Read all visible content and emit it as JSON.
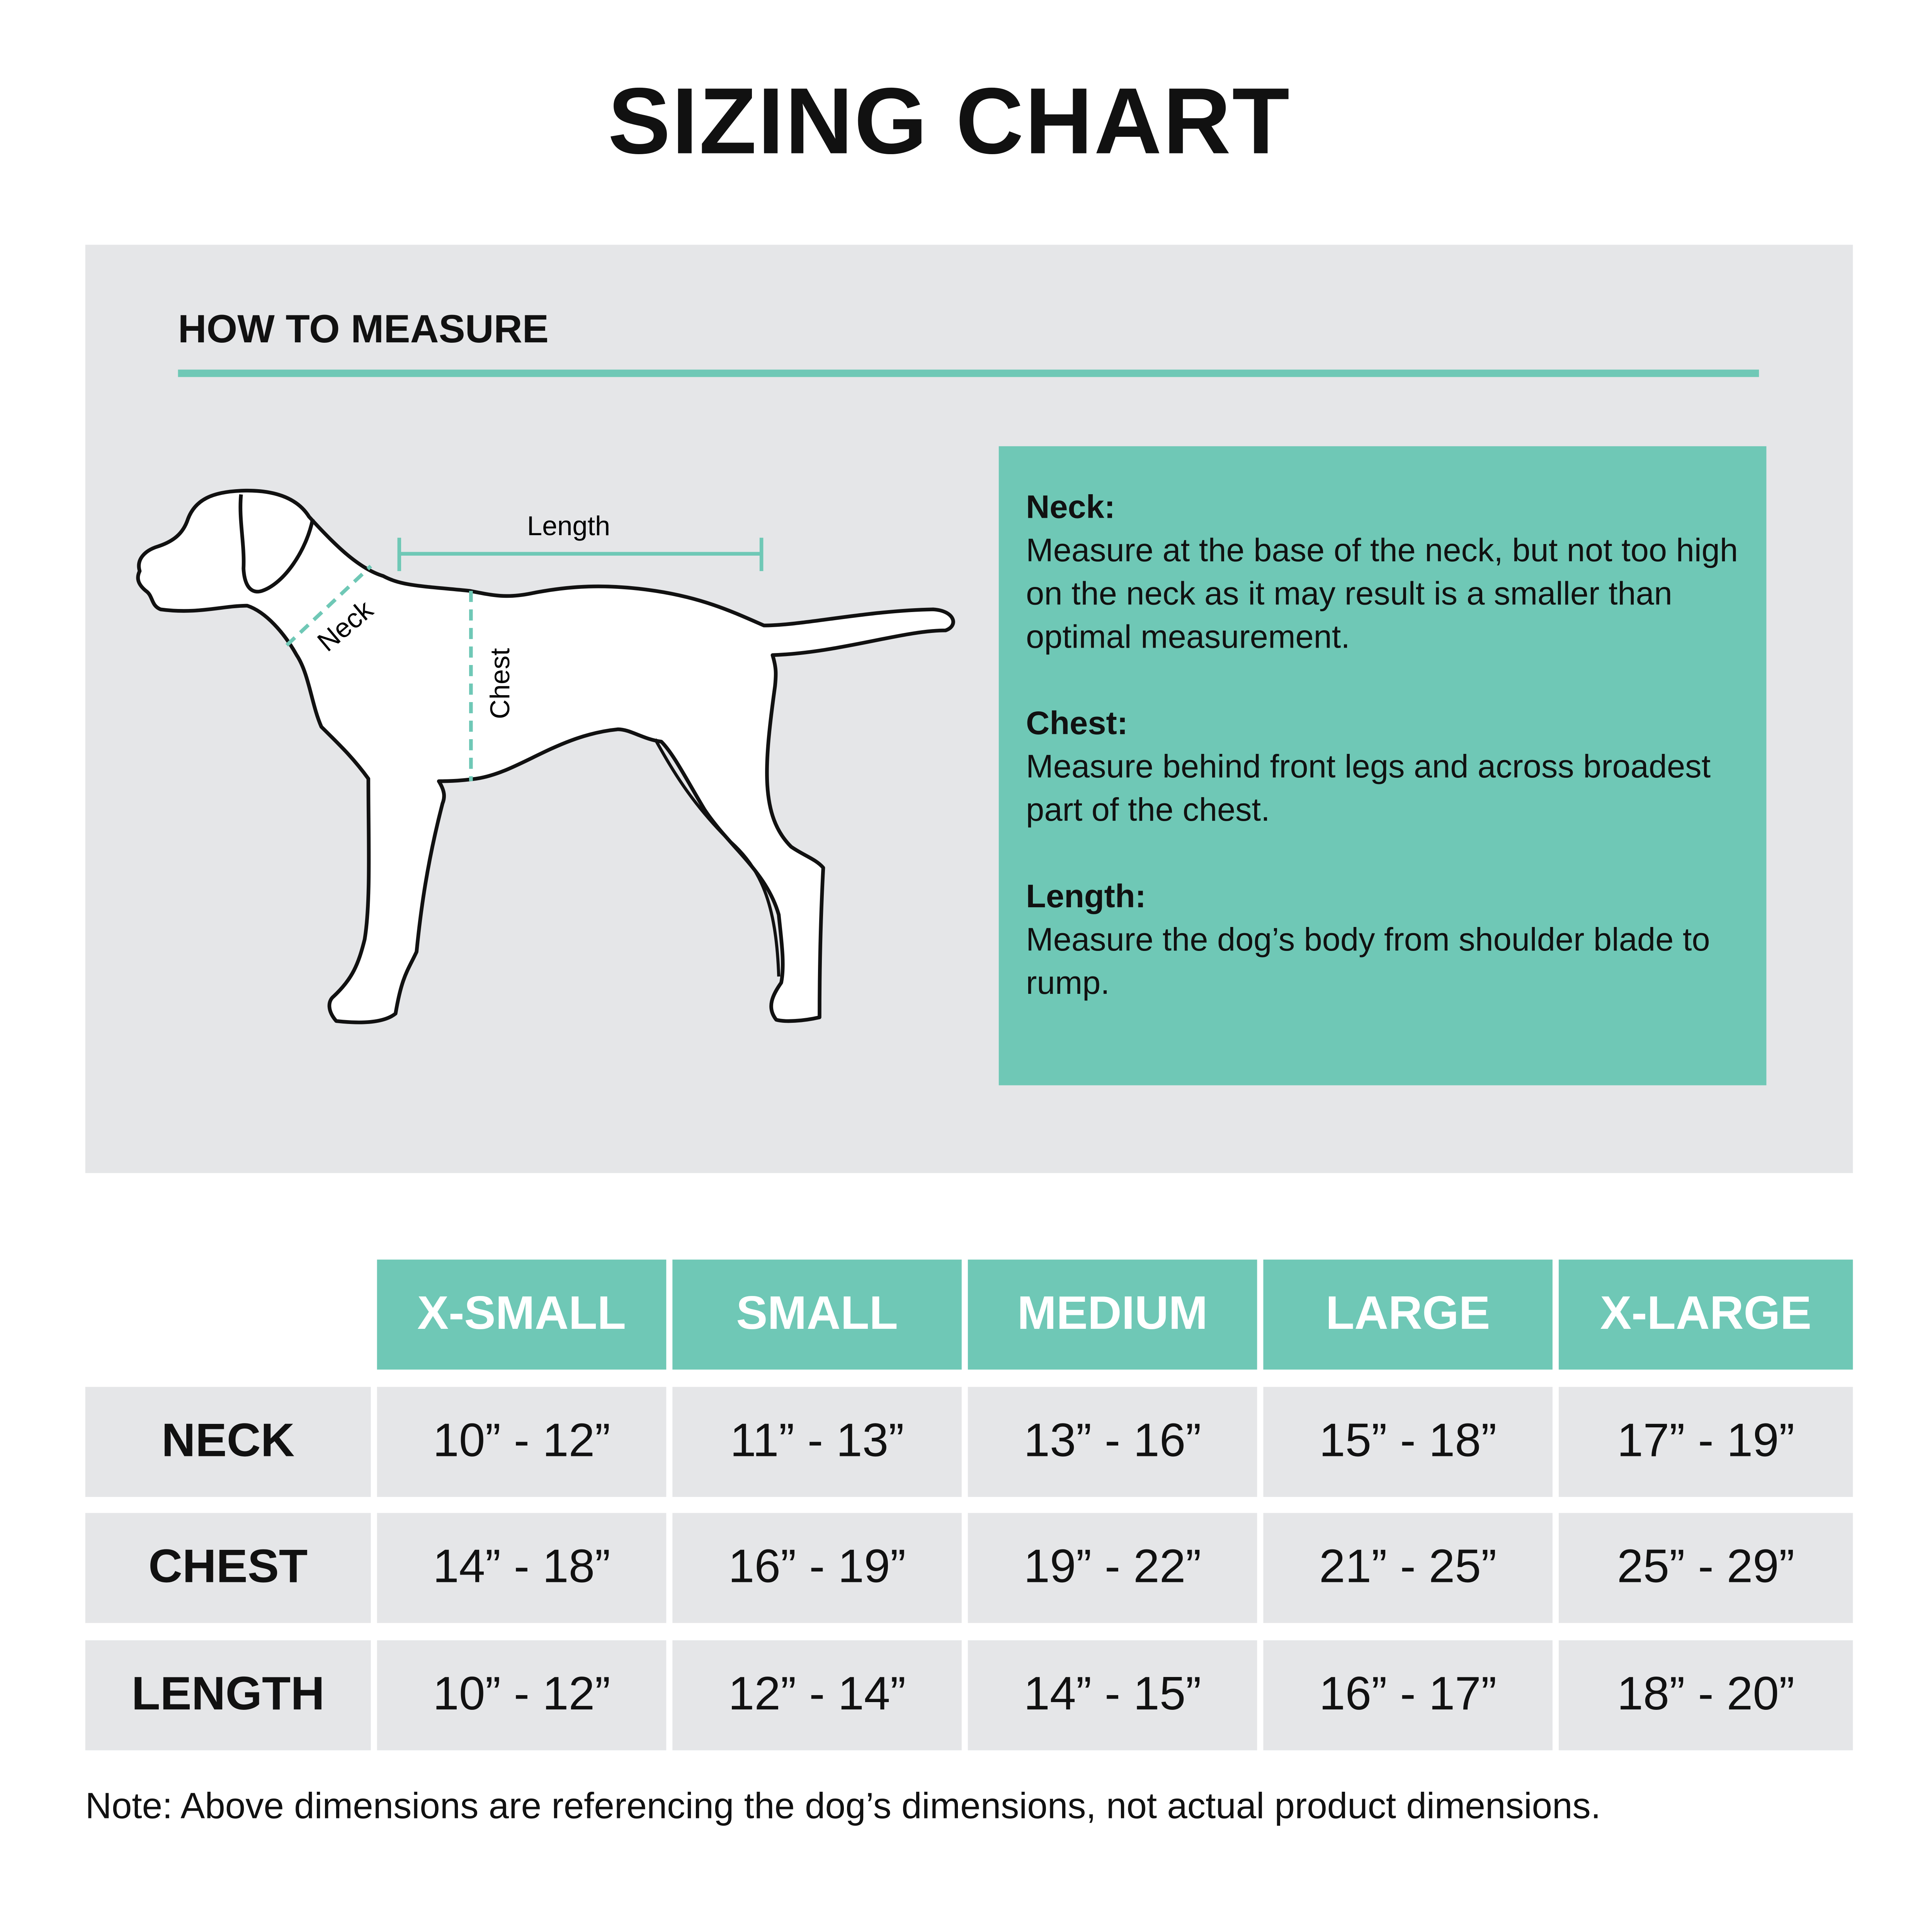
{
  "title": "SIZING CHART",
  "how_to_measure": {
    "heading": "HOW TO MEASURE",
    "diagram_labels": {
      "length": "Length",
      "neck": "Neck",
      "chest": "Chest"
    },
    "instructions": [
      {
        "label": "Neck:",
        "text": "Measure at the base of the neck, but not too high on the neck as it may result is a smaller than optimal measurement."
      },
      {
        "label": "Chest:",
        "text": "Measure behind front legs and across broadest part of the chest."
      },
      {
        "label": "Length:",
        "text": "Measure the dog’s body from shoulder blade to rump."
      }
    ]
  },
  "table": {
    "columns": [
      "X-SMALL",
      "SMALL",
      "MEDIUM",
      "LARGE",
      "X-LARGE"
    ],
    "rows": [
      {
        "label": "NECK",
        "values": [
          "10” - 12”",
          "11” - 13”",
          "13” - 16”",
          "15” - 18”",
          "17” - 19”"
        ]
      },
      {
        "label": "CHEST",
        "values": [
          "14” - 18”",
          "16” - 19”",
          "19” - 22”",
          "21” - 25”",
          "25” - 29”"
        ]
      },
      {
        "label": "LENGTH",
        "values": [
          "10” - 12”",
          "12” - 14”",
          "14” - 15”",
          "16” - 17”",
          "18” - 20”"
        ]
      }
    ]
  },
  "note": "Note: Above dimensions are referencing the dog’s dimensions, not actual product dimensions.",
  "colors": {
    "accent": "#6fc8b6",
    "panel": "#e5e6e8",
    "text": "#111111"
  }
}
